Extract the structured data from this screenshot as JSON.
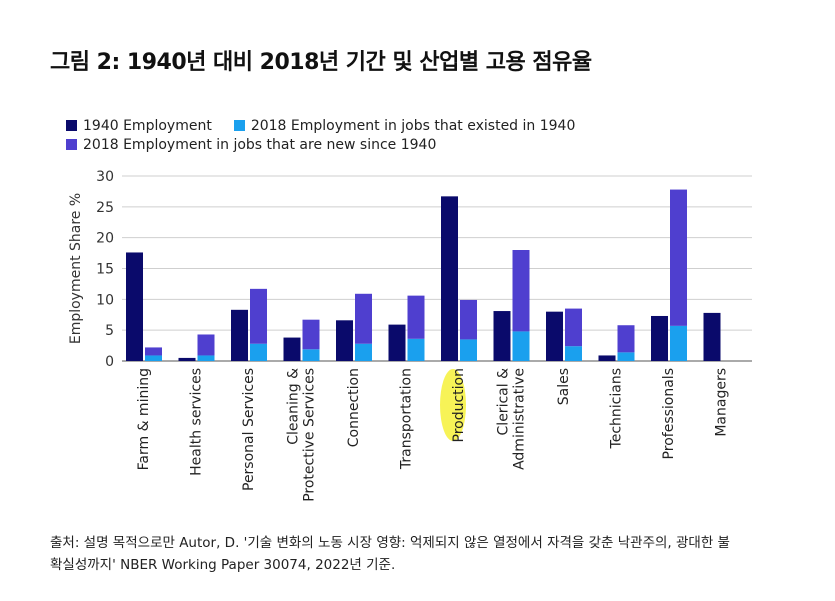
{
  "figure": {
    "title": "그림 2: 1940년 대비 2018년 기간 및 산업별 고용 점유율"
  },
  "source": {
    "line1": "출처: 설명 목적으로만 Autor, D. '기술 변화의 노동 시장 영향: 억제되지 않은 열정에서 자격을 갖춘 낙관주의, 광대한 불",
    "line2": "확실성까지' NBER Working Paper 30074, 2022년 기준."
  },
  "colors": {
    "employment_1940": "#0a0a6b",
    "existed_2018": "#1aa0ee",
    "new_2018": "#4f3fcf",
    "grid": "#cfcfcf",
    "highlight": "#f6f13a"
  },
  "chart_data": {
    "type": "bar",
    "ylabel": "Employment Share %",
    "xlabel": "",
    "ylim": [
      0,
      30
    ],
    "yticks": [
      0,
      5,
      10,
      15,
      20,
      25,
      30
    ],
    "grid": true,
    "legend_position": "top-left",
    "highlighted_category": "Production",
    "categories": [
      "Farm & mining",
      "Health services",
      "Personal Services",
      "Cleaning & Protective Services",
      "Connection",
      "Transportation",
      "Production",
      "Clerical & Administrative",
      "Sales",
      "Technicians",
      "Professionals",
      "Managers"
    ],
    "category_lines": [
      [
        "Farm & mining"
      ],
      [
        "Health services"
      ],
      [
        "Personal Services"
      ],
      [
        "Cleaning &",
        "Protective Services"
      ],
      [
        "Connection"
      ],
      [
        "Transportation"
      ],
      [
        "Production"
      ],
      [
        "Clerical &",
        "Administrative"
      ],
      [
        "Sales"
      ],
      [
        "Technicians"
      ],
      [
        "Professionals"
      ],
      [
        "Managers"
      ]
    ],
    "series": [
      {
        "name": "1940 Employment",
        "stack": "1940",
        "values": [
          17.6,
          0.5,
          8.3,
          3.8,
          6.6,
          5.9,
          26.7,
          8.1,
          8.0,
          0.9,
          7.3,
          7.8
        ]
      },
      {
        "name": "2018 Employment in jobs that existed in 1940",
        "stack": "2018",
        "values": [
          0.9,
          0.9,
          2.8,
          1.9,
          2.8,
          3.6,
          3.5,
          4.8,
          2.4,
          1.4,
          5.7,
          0
        ]
      },
      {
        "name": "2018 Employment in jobs that are new since 1940",
        "stack": "2018",
        "values": [
          1.3,
          3.4,
          8.9,
          4.8,
          8.1,
          7.0,
          6.4,
          13.2,
          6.1,
          4.4,
          22.1,
          0
        ]
      }
    ],
    "legend": [
      {
        "label": "1940 Employment",
        "color_key": "employment_1940"
      },
      {
        "label": "2018 Employment in jobs that existed in 1940",
        "color_key": "existed_2018"
      },
      {
        "label": "2018 Employment in jobs that are new since 1940",
        "color_key": "new_2018"
      }
    ]
  }
}
